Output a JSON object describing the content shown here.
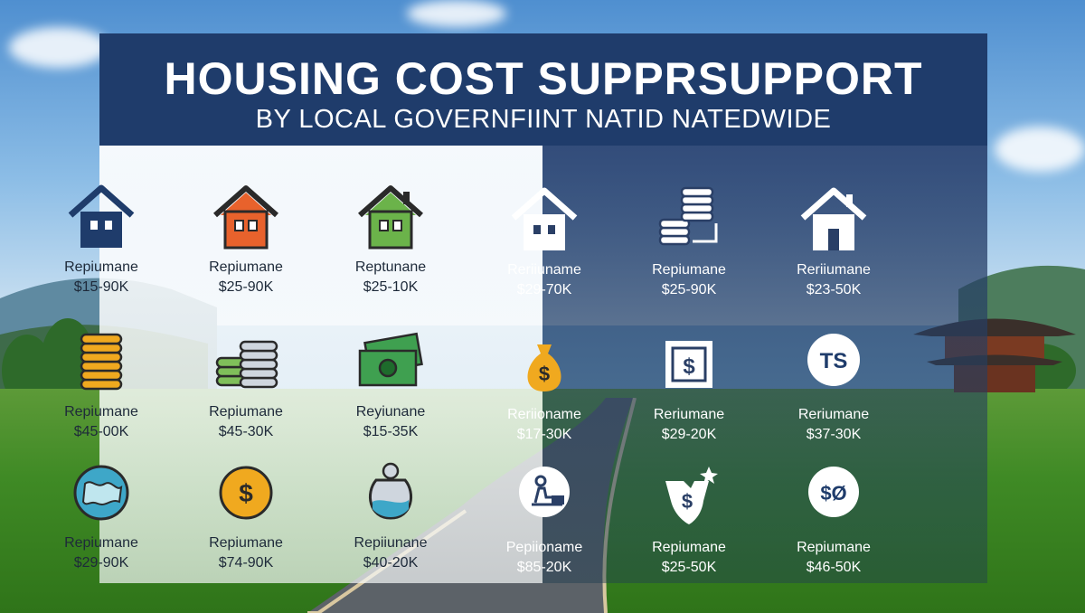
{
  "title": "HOUSING COST SUPPRSUPPORT",
  "subtitle": "BY LOCAL GOVERNFIINT NATID NATEDWIDE",
  "colors": {
    "header": "#1f3c6b",
    "orange_house": "#e8622c",
    "green_house": "#6bb34a",
    "coin_gold": "#f0a91f",
    "bill_green": "#3fa050"
  },
  "left_items": [
    {
      "icon": "house-navy-icon",
      "name": "Repiumane",
      "range": "$15-90K"
    },
    {
      "icon": "house-orange-icon",
      "name": "Repiumane",
      "range": "$25-90K"
    },
    {
      "icon": "house-green-icon",
      "name": "Reptunane",
      "range": "$25-10K"
    },
    {
      "icon": "coin-stack-icon",
      "name": "Repiumane",
      "range": "$45-00K"
    },
    {
      "icon": "coin-stacks-icon",
      "name": "Repiumane",
      "range": "$45-30K"
    },
    {
      "icon": "banknotes-icon",
      "name": "Reyiunane",
      "range": "$15-35K"
    },
    {
      "icon": "globe-icon",
      "name": "Repiumane",
      "range": "$29-90K"
    },
    {
      "icon": "dollar-coin-icon",
      "name": "Repiumane",
      "range": "$74-90K"
    },
    {
      "icon": "money-jar-icon",
      "name": "Repiiunane",
      "range": "$40-20K"
    }
  ],
  "right_items": [
    {
      "icon": "house-white-icon",
      "name": "Reriiuname",
      "range": "$29-70K"
    },
    {
      "icon": "coins-white-icon",
      "name": "Repiumane",
      "range": "$25-90K"
    },
    {
      "icon": "house-outline-icon",
      "name": "Reriiumane",
      "range": "$23-50K"
    },
    {
      "icon": "money-bag-icon",
      "name": "Reriioname",
      "range": "$17-30K"
    },
    {
      "icon": "dollar-frame-icon",
      "name": "Reriumane",
      "range": "$29-20K"
    },
    {
      "icon": "ts-badge-icon",
      "badge_text": "TS",
      "name": "Reriumane",
      "range": "$37-30K"
    },
    {
      "icon": "person-desk-icon",
      "name": "Pepiioname",
      "range": "$85-20K"
    },
    {
      "icon": "dollar-hand-icon",
      "name": "Repiumane",
      "range": "$25-50K"
    },
    {
      "icon": "document-badge-icon",
      "badge_text": "$Ø",
      "name": "Repiumane",
      "range": "$46-50K"
    }
  ]
}
